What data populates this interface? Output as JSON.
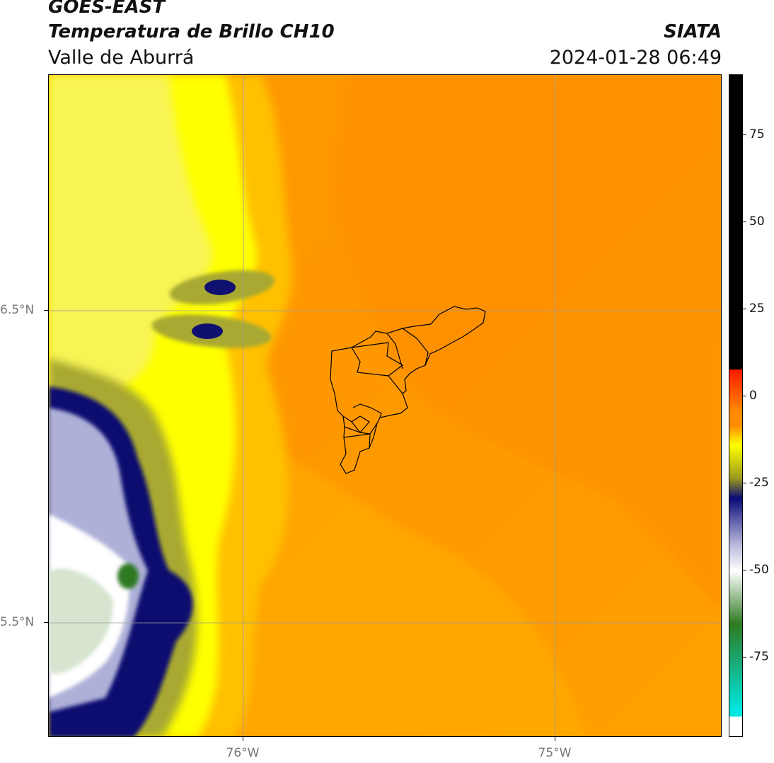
{
  "header": {
    "satellite": "GOES-EAST",
    "product": "Temperatura de Brillo CH10",
    "organization": "SIATA",
    "region": "Valle de Aburrá",
    "datetime": "2024-01-28 06:49"
  },
  "map": {
    "lat_labels": [
      "6.5°N",
      "5.5°N"
    ],
    "lon_labels": [
      "76°W",
      "75°W"
    ]
  },
  "colorbar": {
    "tick_labels": [
      "75",
      "50",
      "25",
      "0",
      "-25",
      "-50",
      "-75"
    ],
    "colors": {
      "black": "#000000",
      "red": "#ff1a00",
      "orange": "#ff8c00",
      "yellow": "#ffff00",
      "olive": "#9a9a1e",
      "navy": "#0a0a78",
      "lavender": "#b8b8dc",
      "white": "#ffffff",
      "green": "#2e7a20",
      "cyan": "#00e6e0"
    }
  }
}
